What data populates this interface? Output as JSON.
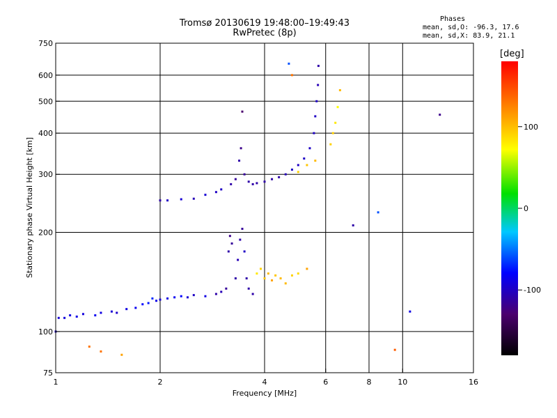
{
  "title_line1": "Tromsø 20130619 19:48:00–19:49:43",
  "title_line2": "RwPretec (8p)",
  "stats": {
    "heading": "Phases",
    "o_mode": "mean, sd,O: -96.3, 17.6",
    "x_mode": "mean, sd,X:  83.9, 21.1"
  },
  "colorbar": {
    "label": "[deg]",
    "ticks": [
      "100",
      "0",
      "-100"
    ],
    "tick_values": [
      100,
      0,
      -100
    ],
    "range": [
      -180,
      180
    ]
  },
  "chart_data": {
    "type": "scatter",
    "xlabel": "Frequency [MHz]",
    "ylabel": "Stationary phase Virtual Height [km]",
    "xscale": "log",
    "yscale": "log",
    "xlim": [
      1,
      16
    ],
    "ylim": [
      75,
      750
    ],
    "xticks": [
      1,
      2,
      4,
      6,
      8,
      10,
      16
    ],
    "xtick_labels": [
      "1",
      "2",
      "4",
      "6",
      "8",
      "10",
      "16"
    ],
    "yticks": [
      75,
      100,
      200,
      300,
      400,
      500,
      600,
      750
    ],
    "ytick_labels": [
      "75",
      "100",
      "200",
      "300",
      "400",
      "500",
      "600",
      "750"
    ],
    "xgrid": [
      2,
      4,
      6,
      8,
      10
    ],
    "ygrid": [
      100,
      200,
      300,
      400,
      500,
      600
    ],
    "point_color_encodes": "phase [deg]",
    "points": [
      {
        "f": 1.0,
        "h": 100,
        "p": -100
      },
      {
        "f": 1.02,
        "h": 110,
        "p": -95
      },
      {
        "f": 1.06,
        "h": 110,
        "p": -92
      },
      {
        "f": 1.1,
        "h": 112,
        "p": -90
      },
      {
        "f": 1.15,
        "h": 111,
        "p": -88
      },
      {
        "f": 1.2,
        "h": 113,
        "p": -92
      },
      {
        "f": 1.3,
        "h": 112,
        "p": -85
      },
      {
        "f": 1.35,
        "h": 114,
        "p": -90
      },
      {
        "f": 1.45,
        "h": 115,
        "p": -95
      },
      {
        "f": 1.5,
        "h": 114,
        "p": -98
      },
      {
        "f": 1.6,
        "h": 117,
        "p": -90
      },
      {
        "f": 1.7,
        "h": 118,
        "p": -85
      },
      {
        "f": 1.78,
        "h": 121,
        "p": -80
      },
      {
        "f": 1.85,
        "h": 122,
        "p": -75
      },
      {
        "f": 1.9,
        "h": 126,
        "p": -70
      },
      {
        "f": 1.95,
        "h": 124,
        "p": -88
      },
      {
        "f": 2.0,
        "h": 125,
        "p": -95
      },
      {
        "f": 2.1,
        "h": 126,
        "p": -90
      },
      {
        "f": 2.2,
        "h": 127,
        "p": -85
      },
      {
        "f": 2.3,
        "h": 128,
        "p": -80
      },
      {
        "f": 2.4,
        "h": 127,
        "p": -95
      },
      {
        "f": 2.5,
        "h": 129,
        "p": -100
      },
      {
        "f": 2.7,
        "h": 128,
        "p": -90
      },
      {
        "f": 2.9,
        "h": 130,
        "p": -110
      },
      {
        "f": 3.0,
        "h": 132,
        "p": -105
      },
      {
        "f": 3.1,
        "h": 135,
        "p": -115
      },
      {
        "f": 3.15,
        "h": 175,
        "p": -110
      },
      {
        "f": 3.18,
        "h": 195,
        "p": -120
      },
      {
        "f": 3.22,
        "h": 185,
        "p": -115
      },
      {
        "f": 3.3,
        "h": 145,
        "p": -110
      },
      {
        "f": 3.35,
        "h": 165,
        "p": -105
      },
      {
        "f": 3.4,
        "h": 190,
        "p": -110
      },
      {
        "f": 3.45,
        "h": 205,
        "p": -115
      },
      {
        "f": 3.5,
        "h": 175,
        "p": -100
      },
      {
        "f": 3.55,
        "h": 145,
        "p": -110
      },
      {
        "f": 3.6,
        "h": 135,
        "p": -110
      },
      {
        "f": 3.7,
        "h": 130,
        "p": -110
      },
      {
        "f": 3.8,
        "h": 150,
        "p": 80
      },
      {
        "f": 3.9,
        "h": 155,
        "p": 90
      },
      {
        "f": 4.0,
        "h": 145,
        "p": 95
      },
      {
        "f": 4.1,
        "h": 150,
        "p": 100
      },
      {
        "f": 4.2,
        "h": 143,
        "p": 110
      },
      {
        "f": 4.3,
        "h": 148,
        "p": 95
      },
      {
        "f": 4.45,
        "h": 145,
        "p": 100
      },
      {
        "f": 4.6,
        "h": 140,
        "p": 100
      },
      {
        "f": 4.8,
        "h": 148,
        "p": 90
      },
      {
        "f": 5.0,
        "h": 150,
        "p": 85
      },
      {
        "f": 5.3,
        "h": 155,
        "p": 110
      },
      {
        "f": 2.0,
        "h": 250,
        "p": -110
      },
      {
        "f": 2.1,
        "h": 250,
        "p": -100
      },
      {
        "f": 2.3,
        "h": 252,
        "p": -95
      },
      {
        "f": 2.5,
        "h": 253,
        "p": -105
      },
      {
        "f": 2.7,
        "h": 260,
        "p": -95
      },
      {
        "f": 2.9,
        "h": 265,
        "p": -100
      },
      {
        "f": 3.0,
        "h": 270,
        "p": -100
      },
      {
        "f": 3.2,
        "h": 280,
        "p": -110
      },
      {
        "f": 3.3,
        "h": 290,
        "p": -115
      },
      {
        "f": 3.38,
        "h": 330,
        "p": -110
      },
      {
        "f": 3.42,
        "h": 360,
        "p": -120
      },
      {
        "f": 3.45,
        "h": 465,
        "p": -130
      },
      {
        "f": 3.5,
        "h": 300,
        "p": -115
      },
      {
        "f": 3.6,
        "h": 285,
        "p": -110
      },
      {
        "f": 3.7,
        "h": 280,
        "p": -110
      },
      {
        "f": 3.8,
        "h": 282,
        "p": -110
      },
      {
        "f": 4.0,
        "h": 285,
        "p": -110
      },
      {
        "f": 4.2,
        "h": 290,
        "p": -110
      },
      {
        "f": 4.4,
        "h": 294,
        "p": -110
      },
      {
        "f": 4.6,
        "h": 300,
        "p": -105
      },
      {
        "f": 4.8,
        "h": 310,
        "p": -100
      },
      {
        "f": 5.0,
        "h": 320,
        "p": -100
      },
      {
        "f": 5.2,
        "h": 335,
        "p": -100
      },
      {
        "f": 5.4,
        "h": 360,
        "p": -100
      },
      {
        "f": 5.55,
        "h": 400,
        "p": -100
      },
      {
        "f": 5.6,
        "h": 450,
        "p": -100
      },
      {
        "f": 5.65,
        "h": 500,
        "p": -100
      },
      {
        "f": 5.7,
        "h": 560,
        "p": -105
      },
      {
        "f": 5.72,
        "h": 640,
        "p": -110
      },
      {
        "f": 5.0,
        "h": 305,
        "p": 90
      },
      {
        "f": 5.3,
        "h": 320,
        "p": 95
      },
      {
        "f": 5.6,
        "h": 330,
        "p": 100
      },
      {
        "f": 6.2,
        "h": 370,
        "p": 90
      },
      {
        "f": 6.3,
        "h": 400,
        "p": 90
      },
      {
        "f": 6.4,
        "h": 430,
        "p": 80
      },
      {
        "f": 6.5,
        "h": 480,
        "p": 70
      },
      {
        "f": 6.6,
        "h": 540,
        "p": 100
      },
      {
        "f": 4.7,
        "h": 650,
        "p": -60
      },
      {
        "f": 4.8,
        "h": 600,
        "p": 130
      },
      {
        "f": 7.2,
        "h": 210,
        "p": -110
      },
      {
        "f": 8.5,
        "h": 230,
        "p": -60
      },
      {
        "f": 12.8,
        "h": 455,
        "p": -120
      },
      {
        "f": 10.5,
        "h": 115,
        "p": -90
      },
      {
        "f": 9.5,
        "h": 88,
        "p": 140
      },
      {
        "f": 1.25,
        "h": 90,
        "p": 130
      },
      {
        "f": 1.35,
        "h": 87,
        "p": 130
      },
      {
        "f": 1.55,
        "h": 85,
        "p": 110
      }
    ]
  }
}
